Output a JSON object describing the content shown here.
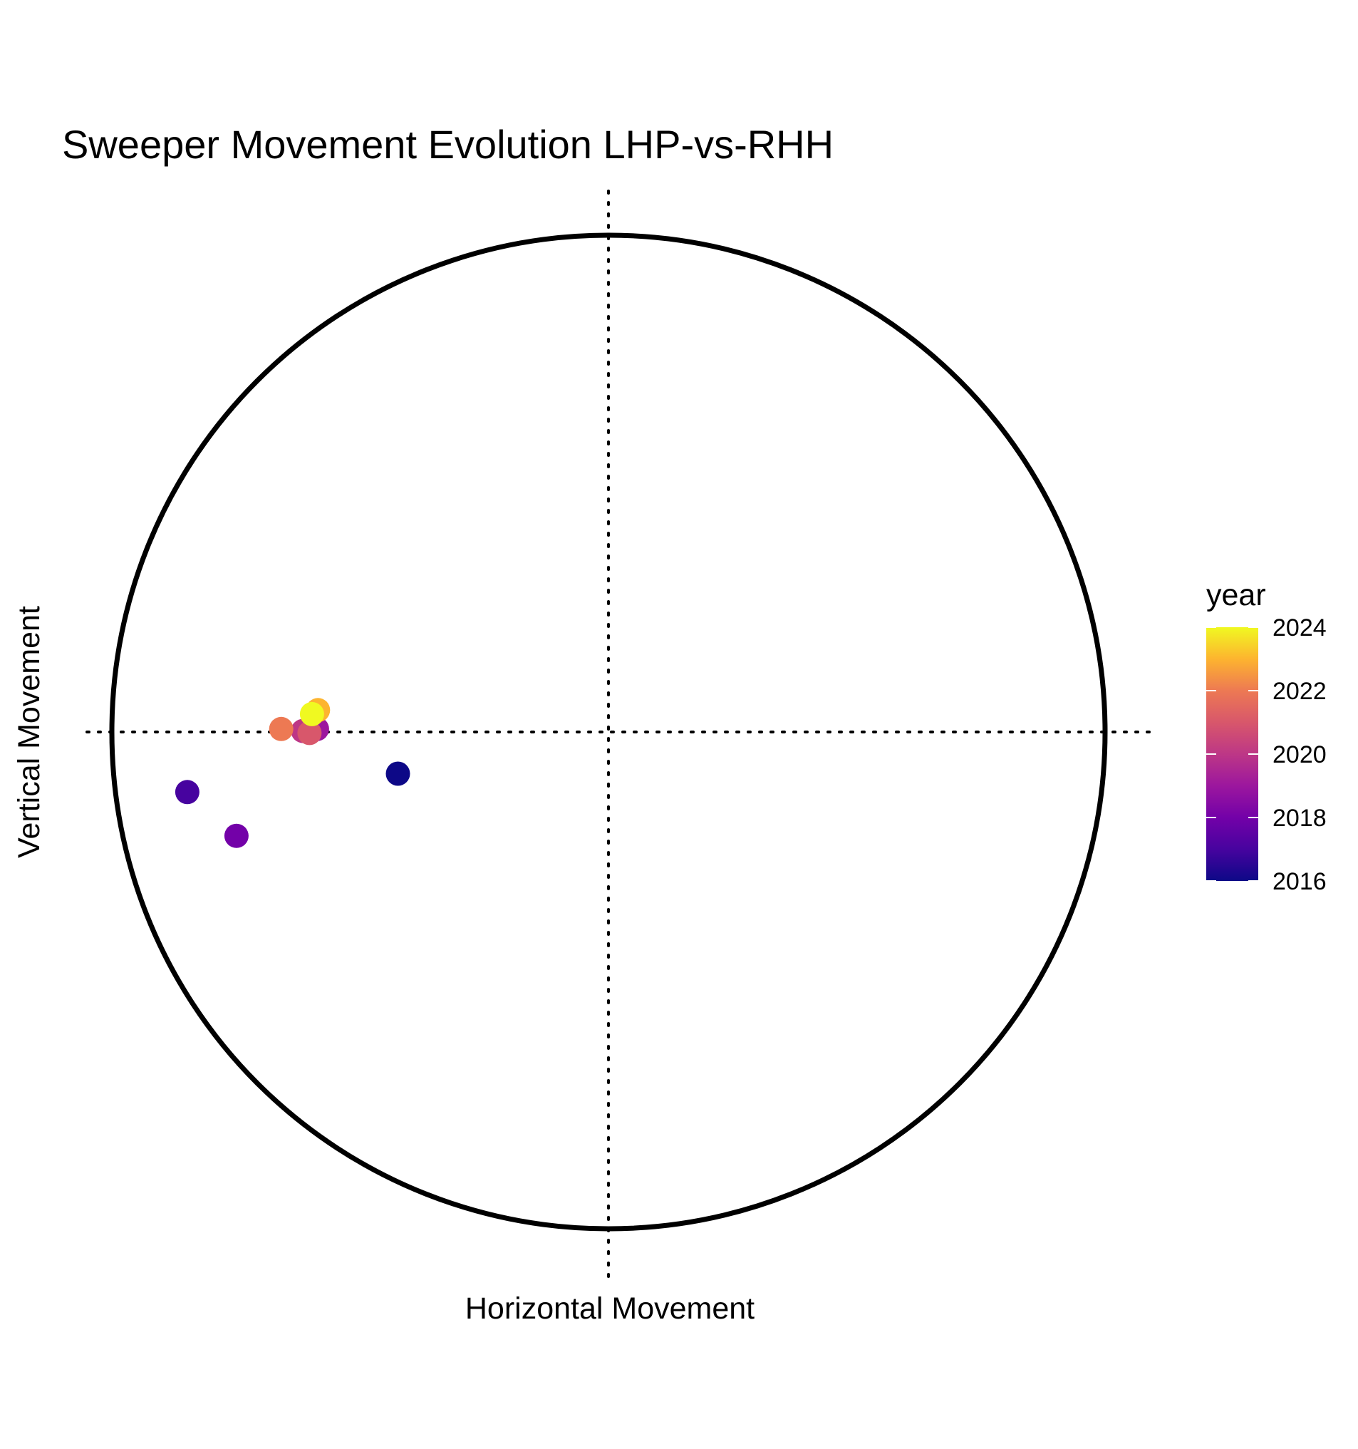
{
  "chart_data": {
    "type": "scatter",
    "title": "Sweeper Movement Evolution LHP-vs-RHH",
    "xlabel": "Horizontal Movement",
    "ylabel": "Vertical Movement",
    "xlim": [
      -1,
      1
    ],
    "ylim": [
      -1,
      1
    ],
    "legend": {
      "title": "year",
      "position": "right",
      "range": [
        2016,
        2024
      ],
      "ticks": [
        "2016",
        "2018",
        "2020",
        "2022",
        "2024"
      ]
    },
    "colors": {
      "2016": "#0d0887",
      "2017": "#47039f",
      "2018": "#7301a8",
      "2019": "#9c179e",
      "2020": "#bd3786",
      "2021": "#d8576b",
      "2022": "#ed7953",
      "2023": "#fdb42f",
      "2024": "#f0f921"
    },
    "points": [
      {
        "year": 2016,
        "x": -0.424,
        "y": -0.084
      },
      {
        "year": 2017,
        "x": -0.848,
        "y": -0.121
      },
      {
        "year": 2018,
        "x": -0.749,
        "y": -0.209
      },
      {
        "year": 2019,
        "x": -0.587,
        "y": 0.006
      },
      {
        "year": 2020,
        "x": -0.615,
        "y": 0.002
      },
      {
        "year": 2021,
        "x": -0.602,
        "y": -0.002
      },
      {
        "year": 2022,
        "x": -0.659,
        "y": 0.006
      },
      {
        "year": 2023,
        "x": -0.585,
        "y": 0.044
      },
      {
        "year": 2024,
        "x": -0.597,
        "y": 0.036
      }
    ]
  }
}
